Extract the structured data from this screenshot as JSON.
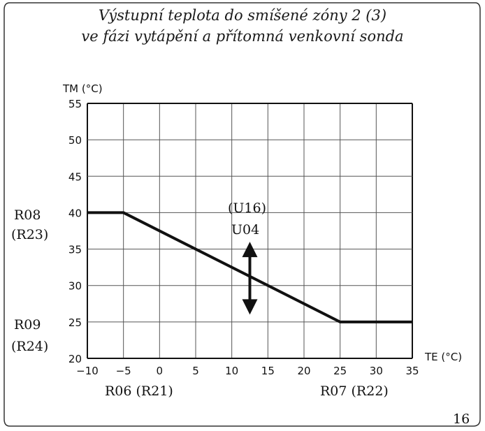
{
  "chart_data": {
    "type": "line",
    "title_line1": "Výstupní teplota do smíšené zóny 2 (3)",
    "title_line2": "ve fázi vytápění a přítomná venkovní sonda",
    "ylabel": "TM (°C)",
    "xlabel": "TE (°C)",
    "xlim": [
      -10,
      35
    ],
    "ylim": [
      20,
      55
    ],
    "x_ticks": [
      -10,
      -5,
      0,
      5,
      10,
      15,
      20,
      25,
      30,
      35
    ],
    "y_ticks": [
      20,
      25,
      30,
      35,
      40,
      45,
      50,
      55
    ],
    "grid": true,
    "series": [
      {
        "x": [
          -10,
          -5,
          25,
          35
        ],
        "y": [
          40,
          40,
          25,
          25
        ]
      }
    ],
    "arrow": {
      "x": 12.5,
      "y_from": 26,
      "y_to": 36
    },
    "annotations": {
      "r08": "R08",
      "r23": "(R23)",
      "r09": "R09",
      "r24": "(R24)",
      "r06": "R06 (R21)",
      "r07": "R07 (R22)",
      "u16": "(U16)",
      "u04": "U04"
    }
  },
  "page_number": "16"
}
